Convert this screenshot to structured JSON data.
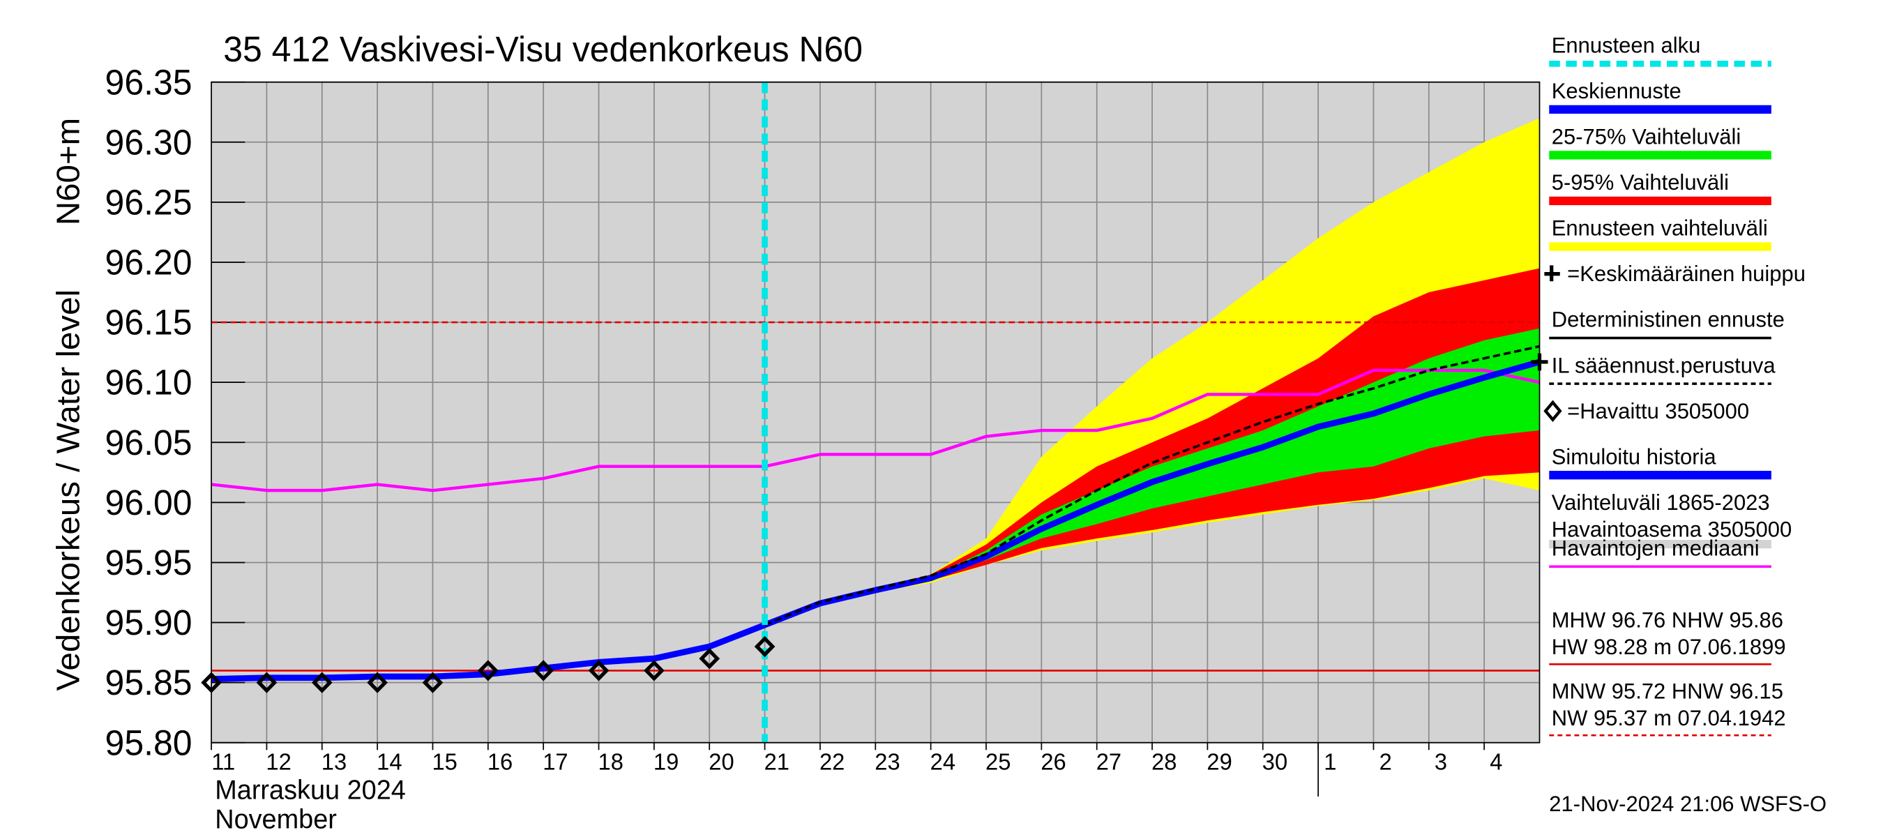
{
  "chart_data": {
    "type": "forecast",
    "title": "35 412 Vaskivesi-Visu vedenkorkeus N60",
    "y_label": "Vedenkorkeus / Water level",
    "y_unit_label": "N60+m",
    "month_label": "Marraskuu 2024",
    "month_label_en": "November",
    "timestamp": "21-Nov-2024 21:06 WSFS-O",
    "categories": [
      "11",
      "12",
      "13",
      "14",
      "15",
      "16",
      "17",
      "18",
      "19",
      "20",
      "21",
      "22",
      "23",
      "24",
      "25",
      "26",
      "27",
      "28",
      "29",
      "30",
      "1",
      "2",
      "3",
      "4",
      null
    ],
    "month_start_index": 20,
    "forecast_start_index": 10,
    "ylim": [
      95.8,
      96.35
    ],
    "yticks": [
      {
        "value": 95.8,
        "label": "95.80"
      },
      95.85,
      {
        "value": 95.9,
        "label": "95.90"
      },
      95.95,
      {
        "value": 96.0,
        "label": "96.00"
      },
      96.05,
      {
        "value": 96.1,
        "label": "96.10"
      },
      96.15,
      {
        "value": 96.2,
        "label": "96.20"
      },
      96.25,
      {
        "value": 96.3,
        "label": "96.30"
      },
      96.35
    ],
    "grid": true,
    "hlines": [
      {
        "value": 96.15,
        "color": "#e00000",
        "style": "dashed"
      },
      {
        "value": 95.86,
        "color": "#e00000",
        "style": "solid"
      }
    ],
    "bands": [
      {
        "name": "Ennusteen vaihteluväli",
        "color": "#ffff00",
        "low": [
          null,
          null,
          null,
          null,
          null,
          null,
          null,
          null,
          null,
          null,
          95.898,
          95.915,
          95.925,
          95.933,
          95.948,
          95.96,
          95.968,
          95.975,
          95.983,
          95.99,
          95.997,
          96.002,
          96.01,
          96.02,
          96.01
        ],
        "high": [
          null,
          null,
          null,
          null,
          null,
          null,
          null,
          null,
          null,
          null,
          95.898,
          95.918,
          95.928,
          95.94,
          95.97,
          96.038,
          96.08,
          96.12,
          96.15,
          96.185,
          96.22,
          96.25,
          96.275,
          96.3,
          96.32
        ]
      },
      {
        "name": "5-95% Vaihteluväli",
        "color": "#ff0000",
        "low": [
          null,
          null,
          null,
          null,
          null,
          null,
          null,
          null,
          null,
          null,
          95.898,
          95.916,
          95.926,
          95.935,
          95.948,
          95.962,
          95.97,
          95.977,
          95.985,
          95.992,
          95.998,
          96.003,
          96.012,
          96.022,
          96.025
        ],
        "high": [
          null,
          null,
          null,
          null,
          null,
          null,
          null,
          null,
          null,
          null,
          95.898,
          95.917,
          95.927,
          95.94,
          95.965,
          96.0,
          96.03,
          96.05,
          96.07,
          96.095,
          96.12,
          96.155,
          96.175,
          96.185,
          96.195
        ]
      },
      {
        "name": "25-75% Vaihteluväli",
        "color": "#00ee00",
        "low": [
          null,
          null,
          null,
          null,
          null,
          null,
          null,
          null,
          null,
          null,
          95.898,
          95.916,
          95.926,
          95.937,
          95.952,
          95.97,
          95.982,
          95.995,
          96.005,
          96.015,
          96.025,
          96.03,
          96.045,
          96.055,
          96.06
        ],
        "high": [
          null,
          null,
          null,
          null,
          null,
          null,
          null,
          null,
          null,
          null,
          95.898,
          95.917,
          95.927,
          95.938,
          95.96,
          95.99,
          96.01,
          96.03,
          96.045,
          96.06,
          96.08,
          96.1,
          96.12,
          96.135,
          96.145
        ]
      }
    ],
    "series": [
      {
        "name": "Havaintojen mediaani",
        "color": "#ff00ff",
        "width": 2.5,
        "values": [
          96.015,
          96.01,
          96.01,
          96.015,
          96.01,
          96.015,
          96.02,
          96.03,
          96.03,
          96.03,
          96.03,
          96.04,
          96.04,
          96.04,
          96.055,
          96.06,
          96.06,
          96.07,
          96.09,
          96.09,
          96.09,
          96.11,
          96.11,
          96.11,
          96.1
        ]
      },
      {
        "name": "Keskiennuste",
        "color": "#0000ff",
        "width": 5,
        "values": [
          95.853,
          95.854,
          95.854,
          95.855,
          95.855,
          95.857,
          95.862,
          95.867,
          95.87,
          95.88,
          95.898,
          95.916,
          95.927,
          95.937,
          95.955,
          95.978,
          95.998,
          96.017,
          96.032,
          96.046,
          96.063,
          96.074,
          96.09,
          96.104,
          96.117
        ]
      },
      {
        "name": "Deterministinen ennuste",
        "color": "#000000",
        "width": 2,
        "dash": "6 3",
        "values": [
          null,
          null,
          null,
          null,
          null,
          null,
          null,
          null,
          null,
          null,
          95.898,
          95.917,
          95.928,
          95.939,
          95.957,
          95.985,
          96.01,
          96.033,
          96.05,
          96.067,
          96.082,
          96.095,
          96.11,
          96.12,
          96.13
        ]
      }
    ],
    "observed": {
      "name": "=Havaittu 3505000",
      "values": [
        95.85,
        95.85,
        95.85,
        95.85,
        95.85,
        95.86,
        95.86,
        95.86,
        95.86,
        95.87,
        95.88,
        null,
        null,
        null,
        null,
        null,
        null,
        null,
        null,
        null,
        null,
        null,
        null,
        null,
        null
      ]
    },
    "peak": {
      "index": 24,
      "value": 96.117
    },
    "legend": [
      {
        "name": "Ennusteen alku",
        "color": "#00e5e5",
        "kind": "dashed"
      },
      {
        "name": "Keskiennuste",
        "color": "#0000ff",
        "kind": "line"
      },
      {
        "name": "25-75% Vaihteluväli",
        "color": "#00ee00",
        "kind": "line"
      },
      {
        "name": "5-95% Vaihteluväli",
        "color": "#ff0000",
        "kind": "line"
      },
      {
        "name": "Ennusteen vaihteluväli",
        "color": "#ffff00",
        "kind": "line"
      },
      {
        "name": "=Keskimääräinen huippu",
        "color": "#000000",
        "kind": "plus"
      },
      {
        "name": "Deterministinen ennuste",
        "color": "#000000",
        "kind": "thin"
      },
      {
        "name": "IL sääennust.perustuva",
        "color": "#000000",
        "kind": "thindash"
      },
      {
        "name": "=Havaittu 3505000",
        "color": "#000000",
        "kind": "diamond"
      },
      {
        "name": "Simuloitu historia",
        "color": "#0000ff",
        "kind": "line"
      },
      {
        "name": "Vaihteluväli 1865-2023",
        "color": "#d3d3d3",
        "kind": "line",
        "sub": " Havaintoasema 3505000"
      },
      {
        "name": "Havaintojen mediaani",
        "color": "#ff00ff",
        "kind": "thin"
      }
    ],
    "stats": [
      {
        "lines": [
          "MHW  96.76 NHW  95.86",
          "HW  98.28 m 07.06.1899"
        ],
        "color": "#e00000",
        "style": "solid"
      },
      {
        "lines": [
          "MNW  95.72 HNW  96.15",
          "NW  95.37 m 07.04.1942"
        ],
        "color": "#e00000",
        "style": "dashed"
      }
    ]
  }
}
